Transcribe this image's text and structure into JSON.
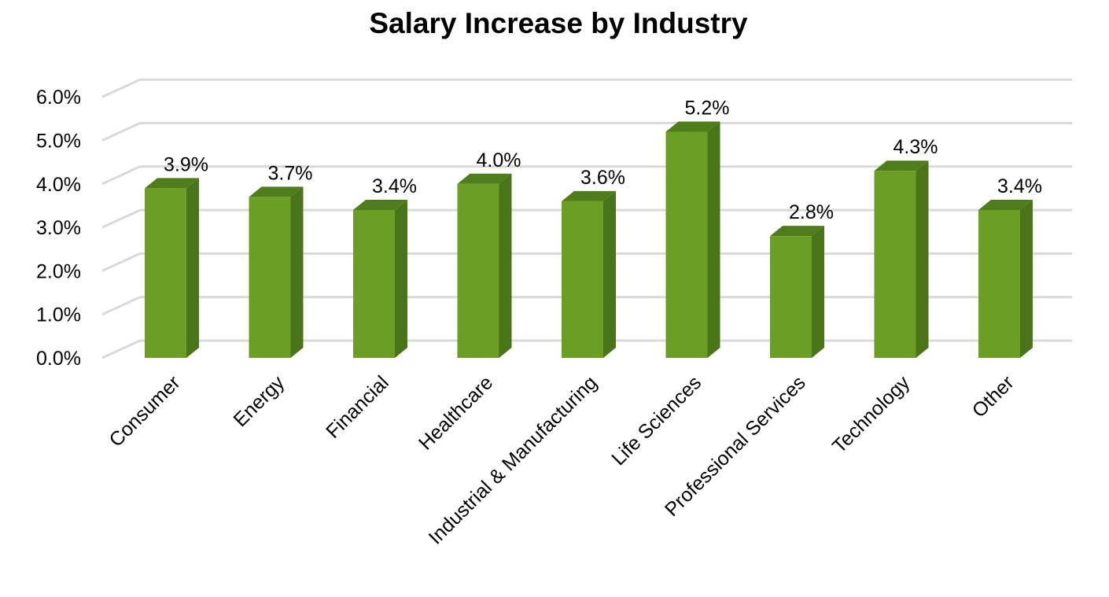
{
  "chart_data": {
    "type": "bar",
    "style": "3d-column",
    "title": "Salary Increase by Industry",
    "xlabel": "",
    "ylabel": "",
    "categories": [
      "Consumer",
      "Energy",
      "Financial",
      "Healthcare",
      "Industrial & Manufacturing",
      "Life Sciences",
      "Professional Services",
      "Technology",
      "Other"
    ],
    "values": [
      3.9,
      3.7,
      3.4,
      4.0,
      3.6,
      5.2,
      2.8,
      4.3,
      3.4
    ],
    "data_labels": [
      "3.9%",
      "3.7%",
      "3.4%",
      "4.0%",
      "3.6%",
      "5.2%",
      "2.8%",
      "4.3%",
      "3.4%"
    ],
    "yticks": [
      "0.0%",
      "1.0%",
      "2.0%",
      "3.0%",
      "4.0%",
      "5.0%",
      "6.0%"
    ],
    "ylim": [
      0,
      6
    ],
    "grid": true,
    "legend": null,
    "colors": {
      "front": "#6a9e24",
      "side": "#4a7418",
      "top": "#4f7d1b",
      "grid": "#d9d9d9"
    }
  }
}
